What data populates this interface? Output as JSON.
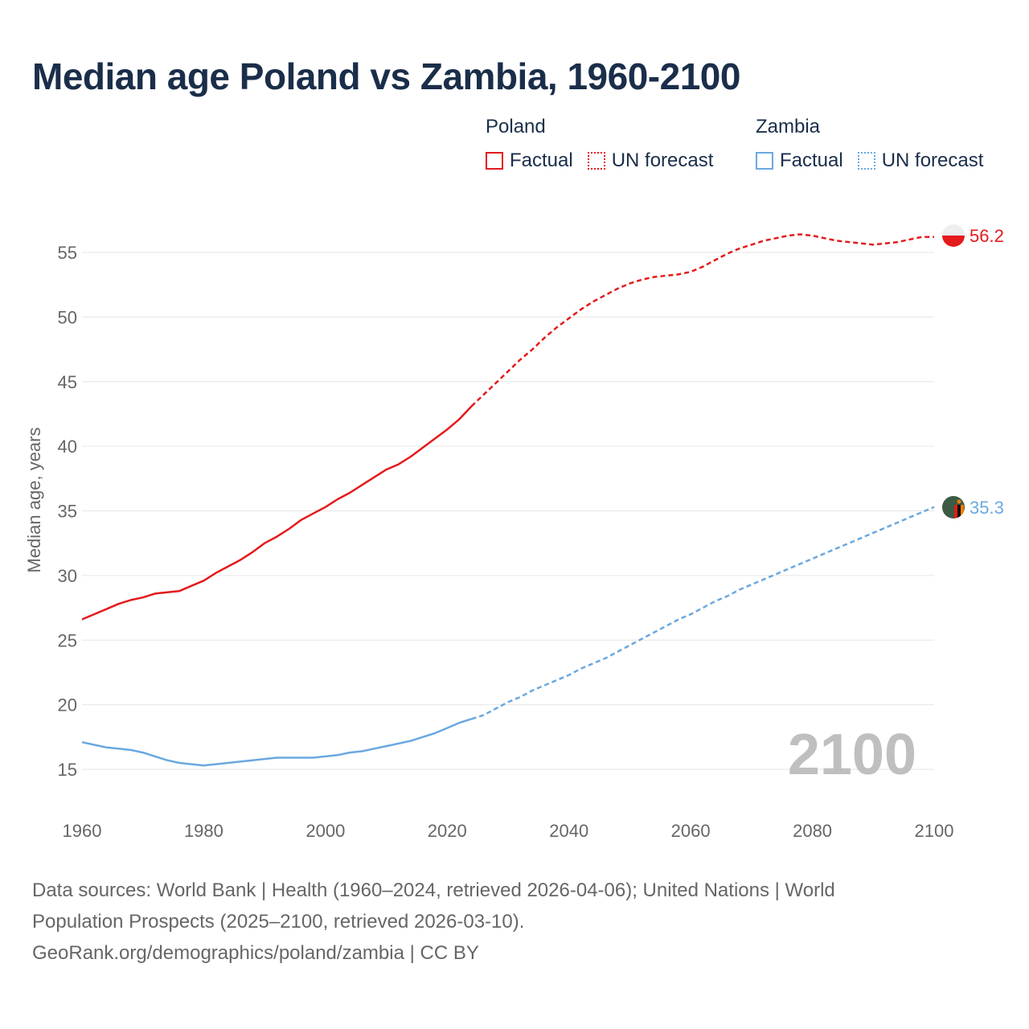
{
  "title": "Median age Poland vs Zambia, 1960-2100",
  "legend": {
    "groups": [
      {
        "name": "Poland",
        "color": "#e41a1c",
        "factual_label": "Factual",
        "forecast_label": "UN forecast"
      },
      {
        "name": "Zambia",
        "color": "#6aa8e0",
        "factual_label": "Factual",
        "forecast_label": "UN forecast"
      }
    ]
  },
  "year_watermark": "2100",
  "footer": {
    "line1": "Data sources: World Bank | Health (1960–2024, retrieved 2026-04-06); United Nations | World",
    "line2": "Population Prospects (2025–2100, retrieved 2026-03-10).",
    "line3": "GeoRank.org/demographics/poland/zambia | CC BY"
  },
  "chart_data": {
    "type": "line",
    "title": "Median age Poland vs Zambia, 1960-2100",
    "xlabel": "",
    "ylabel": "Median age, years",
    "xlim": [
      1960,
      2100
    ],
    "ylim": [
      12,
      58
    ],
    "x_ticks": [
      1960,
      1980,
      2000,
      2020,
      2040,
      2060,
      2080,
      2100
    ],
    "y_ticks": [
      15,
      20,
      25,
      30,
      35,
      40,
      45,
      50,
      55
    ],
    "grid": "horizontal",
    "series": [
      {
        "name": "Poland",
        "color": "#e41a1c",
        "end_label": "56.2",
        "factual": [
          [
            1960,
            26.6
          ],
          [
            1962,
            27.0
          ],
          [
            1964,
            27.4
          ],
          [
            1966,
            27.8
          ],
          [
            1968,
            28.1
          ],
          [
            1970,
            28.3
          ],
          [
            1972,
            28.6
          ],
          [
            1974,
            28.7
          ],
          [
            1976,
            28.8
          ],
          [
            1978,
            29.2
          ],
          [
            1980,
            29.6
          ],
          [
            1982,
            30.2
          ],
          [
            1984,
            30.7
          ],
          [
            1986,
            31.2
          ],
          [
            1988,
            31.8
          ],
          [
            1990,
            32.5
          ],
          [
            1992,
            33.0
          ],
          [
            1994,
            33.6
          ],
          [
            1996,
            34.3
          ],
          [
            1998,
            34.8
          ],
          [
            2000,
            35.3
          ],
          [
            2002,
            35.9
          ],
          [
            2004,
            36.4
          ],
          [
            2006,
            37.0
          ],
          [
            2008,
            37.6
          ],
          [
            2010,
            38.2
          ],
          [
            2012,
            38.6
          ],
          [
            2014,
            39.2
          ],
          [
            2016,
            39.9
          ],
          [
            2018,
            40.6
          ],
          [
            2020,
            41.3
          ],
          [
            2022,
            42.1
          ],
          [
            2024,
            43.1
          ]
        ],
        "forecast": [
          [
            2024,
            43.1
          ],
          [
            2026,
            44.0
          ],
          [
            2028,
            44.9
          ],
          [
            2030,
            45.8
          ],
          [
            2032,
            46.7
          ],
          [
            2034,
            47.5
          ],
          [
            2036,
            48.4
          ],
          [
            2038,
            49.2
          ],
          [
            2040,
            49.9
          ],
          [
            2042,
            50.6
          ],
          [
            2044,
            51.2
          ],
          [
            2046,
            51.7
          ],
          [
            2048,
            52.2
          ],
          [
            2050,
            52.6
          ],
          [
            2052,
            52.9
          ],
          [
            2054,
            53.1
          ],
          [
            2056,
            53.2
          ],
          [
            2058,
            53.3
          ],
          [
            2060,
            53.5
          ],
          [
            2062,
            53.9
          ],
          [
            2064,
            54.4
          ],
          [
            2066,
            54.9
          ],
          [
            2068,
            55.3
          ],
          [
            2070,
            55.6
          ],
          [
            2072,
            55.9
          ],
          [
            2074,
            56.1
          ],
          [
            2076,
            56.3
          ],
          [
            2078,
            56.4
          ],
          [
            2080,
            56.3
          ],
          [
            2082,
            56.1
          ],
          [
            2084,
            55.9
          ],
          [
            2086,
            55.8
          ],
          [
            2088,
            55.7
          ],
          [
            2090,
            55.6
          ],
          [
            2092,
            55.7
          ],
          [
            2094,
            55.8
          ],
          [
            2096,
            56.0
          ],
          [
            2098,
            56.2
          ],
          [
            2100,
            56.2
          ]
        ]
      },
      {
        "name": "Zambia",
        "color": "#6aa8e0",
        "end_label": "35.3",
        "factual": [
          [
            1960,
            17.1
          ],
          [
            1962,
            16.9
          ],
          [
            1964,
            16.7
          ],
          [
            1966,
            16.6
          ],
          [
            1968,
            16.5
          ],
          [
            1970,
            16.3
          ],
          [
            1972,
            16.0
          ],
          [
            1974,
            15.7
          ],
          [
            1976,
            15.5
          ],
          [
            1978,
            15.4
          ],
          [
            1980,
            15.3
          ],
          [
            1982,
            15.4
          ],
          [
            1984,
            15.5
          ],
          [
            1986,
            15.6
          ],
          [
            1988,
            15.7
          ],
          [
            1990,
            15.8
          ],
          [
            1992,
            15.9
          ],
          [
            1994,
            15.9
          ],
          [
            1996,
            15.9
          ],
          [
            1998,
            15.9
          ],
          [
            2000,
            16.0
          ],
          [
            2002,
            16.1
          ],
          [
            2004,
            16.3
          ],
          [
            2006,
            16.4
          ],
          [
            2008,
            16.6
          ],
          [
            2010,
            16.8
          ],
          [
            2012,
            17.0
          ],
          [
            2014,
            17.2
          ],
          [
            2016,
            17.5
          ],
          [
            2018,
            17.8
          ],
          [
            2020,
            18.2
          ],
          [
            2022,
            18.6
          ],
          [
            2024,
            18.9
          ]
        ],
        "forecast": [
          [
            2024,
            18.9
          ],
          [
            2026,
            19.2
          ],
          [
            2028,
            19.7
          ],
          [
            2030,
            20.2
          ],
          [
            2032,
            20.6
          ],
          [
            2034,
            21.1
          ],
          [
            2036,
            21.5
          ],
          [
            2038,
            21.9
          ],
          [
            2040,
            22.3
          ],
          [
            2042,
            22.8
          ],
          [
            2044,
            23.2
          ],
          [
            2046,
            23.6
          ],
          [
            2048,
            24.1
          ],
          [
            2050,
            24.6
          ],
          [
            2052,
            25.1
          ],
          [
            2054,
            25.6
          ],
          [
            2056,
            26.1
          ],
          [
            2058,
            26.6
          ],
          [
            2060,
            27.0
          ],
          [
            2062,
            27.5
          ],
          [
            2064,
            28.0
          ],
          [
            2066,
            28.4
          ],
          [
            2068,
            28.9
          ],
          [
            2070,
            29.3
          ],
          [
            2072,
            29.7
          ],
          [
            2074,
            30.1
          ],
          [
            2076,
            30.5
          ],
          [
            2078,
            30.9
          ],
          [
            2080,
            31.3
          ],
          [
            2082,
            31.7
          ],
          [
            2084,
            32.1
          ],
          [
            2086,
            32.5
          ],
          [
            2088,
            32.9
          ],
          [
            2090,
            33.3
          ],
          [
            2092,
            33.7
          ],
          [
            2094,
            34.1
          ],
          [
            2096,
            34.5
          ],
          [
            2098,
            34.9
          ],
          [
            2100,
            35.3
          ]
        ]
      }
    ]
  }
}
